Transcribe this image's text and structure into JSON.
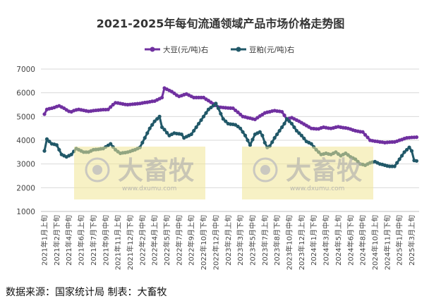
{
  "source_text": "数据来源：国家统计局 制表：大畜牧",
  "watermark": {
    "brand": "大畜牧",
    "url": "www.dxumu.com"
  },
  "chart_data": {
    "type": "line",
    "title": "2021-2025年每旬流通领域产品市场价格走势图",
    "xlabel": "",
    "ylabel": "",
    "ylim": [
      1000,
      7000
    ],
    "yticks": [
      1000,
      2000,
      3000,
      4000,
      5000,
      6000,
      7000
    ],
    "grid": true,
    "legend": "top",
    "x_tick_labels": [
      "2021年1月上旬",
      "2021年2月下旬",
      "2021年4月中旬",
      "2021年6月上旬",
      "2021年7月下旬",
      "2021年9月中旬",
      "2021年11月上旬",
      "2021年12月下旬",
      "2022年2月中旬",
      "2022年4月上旬",
      "2022年5月下旬",
      "2022年7月中旬",
      "2022年9月上旬",
      "2022年10月下旬",
      "2022年12月中旬",
      "2023年2月上旬",
      "2023年3月下旬",
      "2023年5月中旬",
      "2023年7月上旬",
      "2023年8月下旬",
      "2023年10月中旬",
      "2023年12月上旬",
      "2024年1月下旬",
      "2024年3月中旬",
      "2024年5月上旬",
      "2024年6月下旬",
      "2024年8月中旬",
      "2024年10月上旬",
      "2024年11月下旬",
      "2025年1月中旬",
      "2025年3月上旬"
    ],
    "x_tick_every": 5,
    "series": [
      {
        "name": "大豆(元/吨)右",
        "color": "#7030A0",
        "values": [
          5100,
          5300,
          5330,
          5350,
          5380,
          5420,
          5450,
          5400,
          5350,
          5280,
          5220,
          5200,
          5250,
          5280,
          5300,
          5280,
          5260,
          5240,
          5220,
          5230,
          5250,
          5260,
          5270,
          5280,
          5290,
          5290,
          5300,
          5400,
          5500,
          5580,
          5570,
          5550,
          5530,
          5510,
          5500,
          5510,
          5520,
          5530,
          5540,
          5550,
          5570,
          5590,
          5600,
          5620,
          5640,
          5650,
          5700,
          5750,
          5800,
          6200,
          6150,
          6100,
          6050,
          5980,
          5900,
          5850,
          5880,
          5920,
          5950,
          5900,
          5850,
          5800,
          5800,
          5800,
          5800,
          5800,
          5730,
          5670,
          5600,
          5530,
          5470,
          5400,
          5390,
          5380,
          5370,
          5360,
          5355,
          5350,
          5260,
          5180,
          5090,
          5000,
          4980,
          4950,
          4930,
          4900,
          4880,
          4950,
          5020,
          5080,
          5150,
          5180,
          5200,
          5230,
          5250,
          5230,
          5220,
          5200,
          5050,
          4880,
          4920,
          4950,
          4900,
          4850,
          4800,
          4740,
          4680,
          4620,
          4560,
          4500,
          4490,
          4480,
          4480,
          4520,
          4550,
          4530,
          4510,
          4500,
          4520,
          4550,
          4570,
          4550,
          4530,
          4520,
          4500,
          4470,
          4430,
          4400,
          4380,
          4360,
          4350,
          4230,
          4120,
          4000,
          3980,
          3960,
          3950,
          3930,
          3920,
          3900,
          3910,
          3920,
          3925,
          3930,
          3960,
          4000,
          4030,
          4070,
          4100,
          4110,
          4120,
          4125,
          4130
        ]
      },
      {
        "name": "豆粕(元/吨)右",
        "color": "#215868",
        "values": [
          3550,
          4050,
          3950,
          3850,
          3830,
          3800,
          3600,
          3400,
          3350,
          3300,
          3350,
          3400,
          3530,
          3650,
          3600,
          3550,
          3500,
          3500,
          3500,
          3550,
          3600,
          3610,
          3620,
          3640,
          3650,
          3720,
          3780,
          3850,
          3720,
          3600,
          3520,
          3450,
          3470,
          3480,
          3500,
          3530,
          3570,
          3600,
          3650,
          3700,
          3900,
          4100,
          4300,
          4500,
          4650,
          4800,
          4900,
          5000,
          4550,
          4450,
          4320,
          4200,
          4250,
          4300,
          4280,
          4270,
          4250,
          4100,
          4150,
          4200,
          4250,
          4400,
          4550,
          4700,
          4850,
          5000,
          5150,
          5300,
          5380,
          5460,
          5550,
          5350,
          5120,
          4900,
          4800,
          4700,
          4680,
          4670,
          4650,
          4580,
          4500,
          4350,
          4200,
          4000,
          3800,
          4030,
          4250,
          4300,
          4350,
          4200,
          3900,
          3700,
          3750,
          3920,
          4100,
          4250,
          4400,
          4550,
          4700,
          4900,
          4800,
          4700,
          4550,
          4400,
          4300,
          4200,
          4080,
          3950,
          3900,
          3850,
          3720,
          3600,
          3500,
          3400,
          3420,
          3450,
          3420,
          3400,
          3450,
          3500,
          3420,
          3350,
          3400,
          3450,
          3380,
          3300,
          3250,
          3200,
          3100,
          3000,
          2980,
          2950,
          3000,
          3050,
          3080,
          3100,
          3050,
          3000,
          2980,
          2950,
          2920,
          2900,
          2900,
          2900,
          3050,
          3200,
          3350,
          3500,
          3600,
          3700,
          3550,
          3150,
          3130
        ]
      }
    ]
  }
}
